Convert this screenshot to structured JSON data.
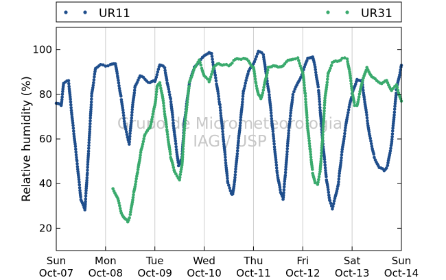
{
  "chart_data": {
    "type": "scatter",
    "ylabel": "Relative humidity (%)",
    "ylim": [
      10,
      110
    ],
    "yticks": [
      20,
      40,
      60,
      80,
      100
    ],
    "xlim": [
      "2007-10-07T00:00",
      "2007-10-14T00:00"
    ],
    "xticks": [
      {
        "day": "Sun",
        "date": "Oct-07"
      },
      {
        "day": "Mon",
        "date": "Oct-08"
      },
      {
        "day": "Tue",
        "date": "Oct-09"
      },
      {
        "day": "Wed",
        "date": "Oct-10"
      },
      {
        "day": "Thu",
        "date": "Oct-11"
      },
      {
        "day": "Fri",
        "date": "Oct-12"
      },
      {
        "day": "Sat",
        "date": "Oct-13"
      },
      {
        "day": "Sun",
        "date": "Oct-14"
      }
    ],
    "grid": "vertical",
    "legend_placement": "top, outside",
    "watermark": [
      "Grupo de Micrometeorologia",
      "IAG / USP"
    ],
    "series": [
      {
        "name": "UR11",
        "color": "#1f4e8c",
        "marker": "dot",
        "points": [
          [
            0.0,
            76
          ],
          [
            0.1,
            75
          ],
          [
            0.15,
            85
          ],
          [
            0.25,
            86
          ],
          [
            0.32,
            70
          ],
          [
            0.42,
            50
          ],
          [
            0.5,
            33
          ],
          [
            0.58,
            28
          ],
          [
            0.63,
            45
          ],
          [
            0.72,
            80
          ],
          [
            0.8,
            92
          ],
          [
            0.9,
            93
          ],
          [
            1.0,
            93
          ],
          [
            1.1,
            93
          ],
          [
            1.2,
            94
          ],
          [
            1.25,
            87
          ],
          [
            1.32,
            78
          ],
          [
            1.4,
            65
          ],
          [
            1.48,
            58
          ],
          [
            1.55,
            75
          ],
          [
            1.6,
            84
          ],
          [
            1.7,
            88
          ],
          [
            1.8,
            87
          ],
          [
            1.9,
            85
          ],
          [
            2.0,
            86
          ],
          [
            2.1,
            93
          ],
          [
            2.2,
            92
          ],
          [
            2.25,
            85
          ],
          [
            2.32,
            78
          ],
          [
            2.4,
            62
          ],
          [
            2.48,
            48
          ],
          [
            2.55,
            52
          ],
          [
            2.6,
            68
          ],
          [
            2.7,
            85
          ],
          [
            2.8,
            92
          ],
          [
            2.9,
            95
          ],
          [
            3.0,
            97
          ],
          [
            3.1,
            99
          ],
          [
            3.15,
            98
          ],
          [
            3.25,
            85
          ],
          [
            3.32,
            75
          ],
          [
            3.4,
            58
          ],
          [
            3.48,
            40
          ],
          [
            3.55,
            36
          ],
          [
            3.58,
            35
          ],
          [
            3.62,
            42
          ],
          [
            3.7,
            60
          ],
          [
            3.8,
            82
          ],
          [
            3.9,
            90
          ],
          [
            4.0,
            94
          ],
          [
            4.1,
            99
          ],
          [
            4.2,
            98
          ],
          [
            4.25,
            90
          ],
          [
            4.32,
            80
          ],
          [
            4.4,
            62
          ],
          [
            4.48,
            45
          ],
          [
            4.55,
            36
          ],
          [
            4.6,
            33
          ],
          [
            4.65,
            45
          ],
          [
            4.72,
            65
          ],
          [
            4.8,
            80
          ],
          [
            4.9,
            85
          ],
          [
            5.0,
            90
          ],
          [
            5.1,
            96
          ],
          [
            5.2,
            97
          ],
          [
            5.25,
            92
          ],
          [
            5.32,
            82
          ],
          [
            5.4,
            60
          ],
          [
            5.48,
            42
          ],
          [
            5.55,
            32
          ],
          [
            5.6,
            29
          ],
          [
            5.65,
            33
          ],
          [
            5.72,
            40
          ],
          [
            5.8,
            55
          ],
          [
            5.9,
            70
          ],
          [
            6.0,
            80
          ],
          [
            6.1,
            87
          ],
          [
            6.2,
            86
          ],
          [
            6.25,
            78
          ],
          [
            6.35,
            62
          ],
          [
            6.45,
            52
          ],
          [
            6.55,
            47
          ],
          [
            6.65,
            46
          ],
          [
            6.72,
            48
          ],
          [
            6.8,
            58
          ],
          [
            6.9,
            82
          ],
          [
            7.0,
            93
          ]
        ]
      },
      {
        "name": "UR31",
        "color": "#3aaa6d",
        "marker": "dot",
        "points": [
          [
            1.15,
            38
          ],
          [
            1.25,
            33
          ],
          [
            1.32,
            27
          ],
          [
            1.4,
            24
          ],
          [
            1.45,
            23
          ],
          [
            1.5,
            26
          ],
          [
            1.58,
            37
          ],
          [
            1.65,
            45
          ],
          [
            1.72,
            55
          ],
          [
            1.8,
            62
          ],
          [
            1.9,
            65
          ],
          [
            1.95,
            70
          ],
          [
            2.0,
            75
          ],
          [
            2.05,
            84
          ],
          [
            2.1,
            85
          ],
          [
            2.15,
            80
          ],
          [
            2.25,
            63
          ],
          [
            2.32,
            52
          ],
          [
            2.4,
            45
          ],
          [
            2.5,
            42
          ],
          [
            2.55,
            48
          ],
          [
            2.6,
            65
          ],
          [
            2.7,
            85
          ],
          [
            2.8,
            92
          ],
          [
            2.9,
            95
          ],
          [
            2.95,
            92
          ],
          [
            3.0,
            88
          ],
          [
            3.1,
            86
          ],
          [
            3.2,
            92
          ],
          [
            3.3,
            94
          ],
          [
            3.4,
            93
          ],
          [
            3.5,
            93
          ],
          [
            3.6,
            95
          ],
          [
            3.7,
            96
          ],
          [
            3.8,
            96
          ],
          [
            3.9,
            95
          ],
          [
            4.0,
            92
          ],
          [
            4.05,
            85
          ],
          [
            4.1,
            80
          ],
          [
            4.15,
            78
          ],
          [
            4.2,
            82
          ],
          [
            4.3,
            92
          ],
          [
            4.4,
            93
          ],
          [
            4.5,
            92
          ],
          [
            4.6,
            93
          ],
          [
            4.7,
            95
          ],
          [
            4.8,
            96
          ],
          [
            4.9,
            96
          ],
          [
            5.0,
            90
          ],
          [
            5.05,
            80
          ],
          [
            5.1,
            65
          ],
          [
            5.15,
            55
          ],
          [
            5.2,
            45
          ],
          [
            5.25,
            40
          ],
          [
            5.3,
            40
          ],
          [
            5.35,
            45
          ],
          [
            5.4,
            60
          ],
          [
            5.45,
            78
          ],
          [
            5.52,
            90
          ],
          [
            5.6,
            94
          ],
          [
            5.7,
            95
          ],
          [
            5.8,
            96
          ],
          [
            5.9,
            96
          ],
          [
            5.95,
            90
          ],
          [
            6.0,
            82
          ],
          [
            6.05,
            75
          ],
          [
            6.1,
            75
          ],
          [
            6.2,
            85
          ],
          [
            6.3,
            92
          ],
          [
            6.4,
            88
          ],
          [
            6.5,
            86
          ],
          [
            6.6,
            85
          ],
          [
            6.7,
            86
          ],
          [
            6.8,
            82
          ],
          [
            6.9,
            84
          ],
          [
            7.0,
            77
          ]
        ]
      }
    ]
  }
}
